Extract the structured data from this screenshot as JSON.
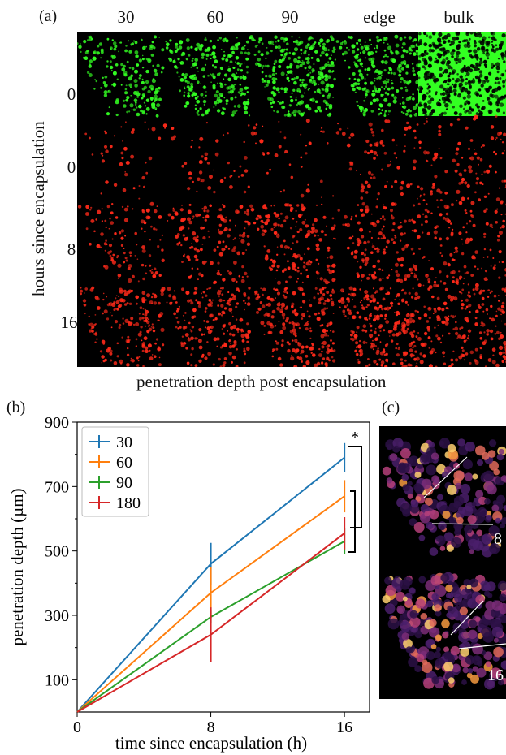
{
  "panel_a": {
    "label": "(a)",
    "columns": [
      "30",
      "60",
      "90",
      "edge",
      "bulk"
    ],
    "rows": [
      "0",
      "0",
      "8",
      "16"
    ],
    "row_colors": [
      "green",
      "red",
      "red",
      "red"
    ],
    "y_axis_title": "hours since encapsulation",
    "x_axis_title": "penetration depth post encapsulation"
  },
  "panel_b": {
    "label": "(b)"
  },
  "panel_c": {
    "label": "(c)",
    "tile_labels": [
      "8",
      "16"
    ]
  },
  "chart_data": {
    "type": "line",
    "x": [
      0,
      8,
      16
    ],
    "xlabel": "time since encapsulation (h)",
    "ylabel": "penetration depth (µm)",
    "xlim": [
      0,
      17.5
    ],
    "ylim": [
      0,
      900
    ],
    "yticks": [
      100,
      300,
      500,
      700,
      900
    ],
    "xticks": [
      0,
      8,
      16
    ],
    "legend_position": "top-left",
    "series": [
      {
        "name": "30",
        "color": "#1f77b4",
        "values": [
          0,
          460,
          790
        ],
        "errors": [
          0,
          65,
          45
        ]
      },
      {
        "name": "60",
        "color": "#ff7f0e",
        "values": [
          0,
          370,
          670
        ],
        "errors": [
          0,
          80,
          50
        ]
      },
      {
        "name": "90",
        "color": "#2ca02c",
        "values": [
          0,
          295,
          530
        ],
        "errors": [
          0,
          20,
          40
        ]
      },
      {
        "name": "180",
        "color": "#d62728",
        "values": [
          0,
          240,
          555
        ],
        "errors": [
          0,
          85,
          50
        ]
      }
    ],
    "significance": "*"
  },
  "colors": {
    "green_stain": "#33ff22",
    "red_stain": "#ff2a1a",
    "heat_low": "#3a1a55",
    "heat_high": "#ffd070"
  }
}
